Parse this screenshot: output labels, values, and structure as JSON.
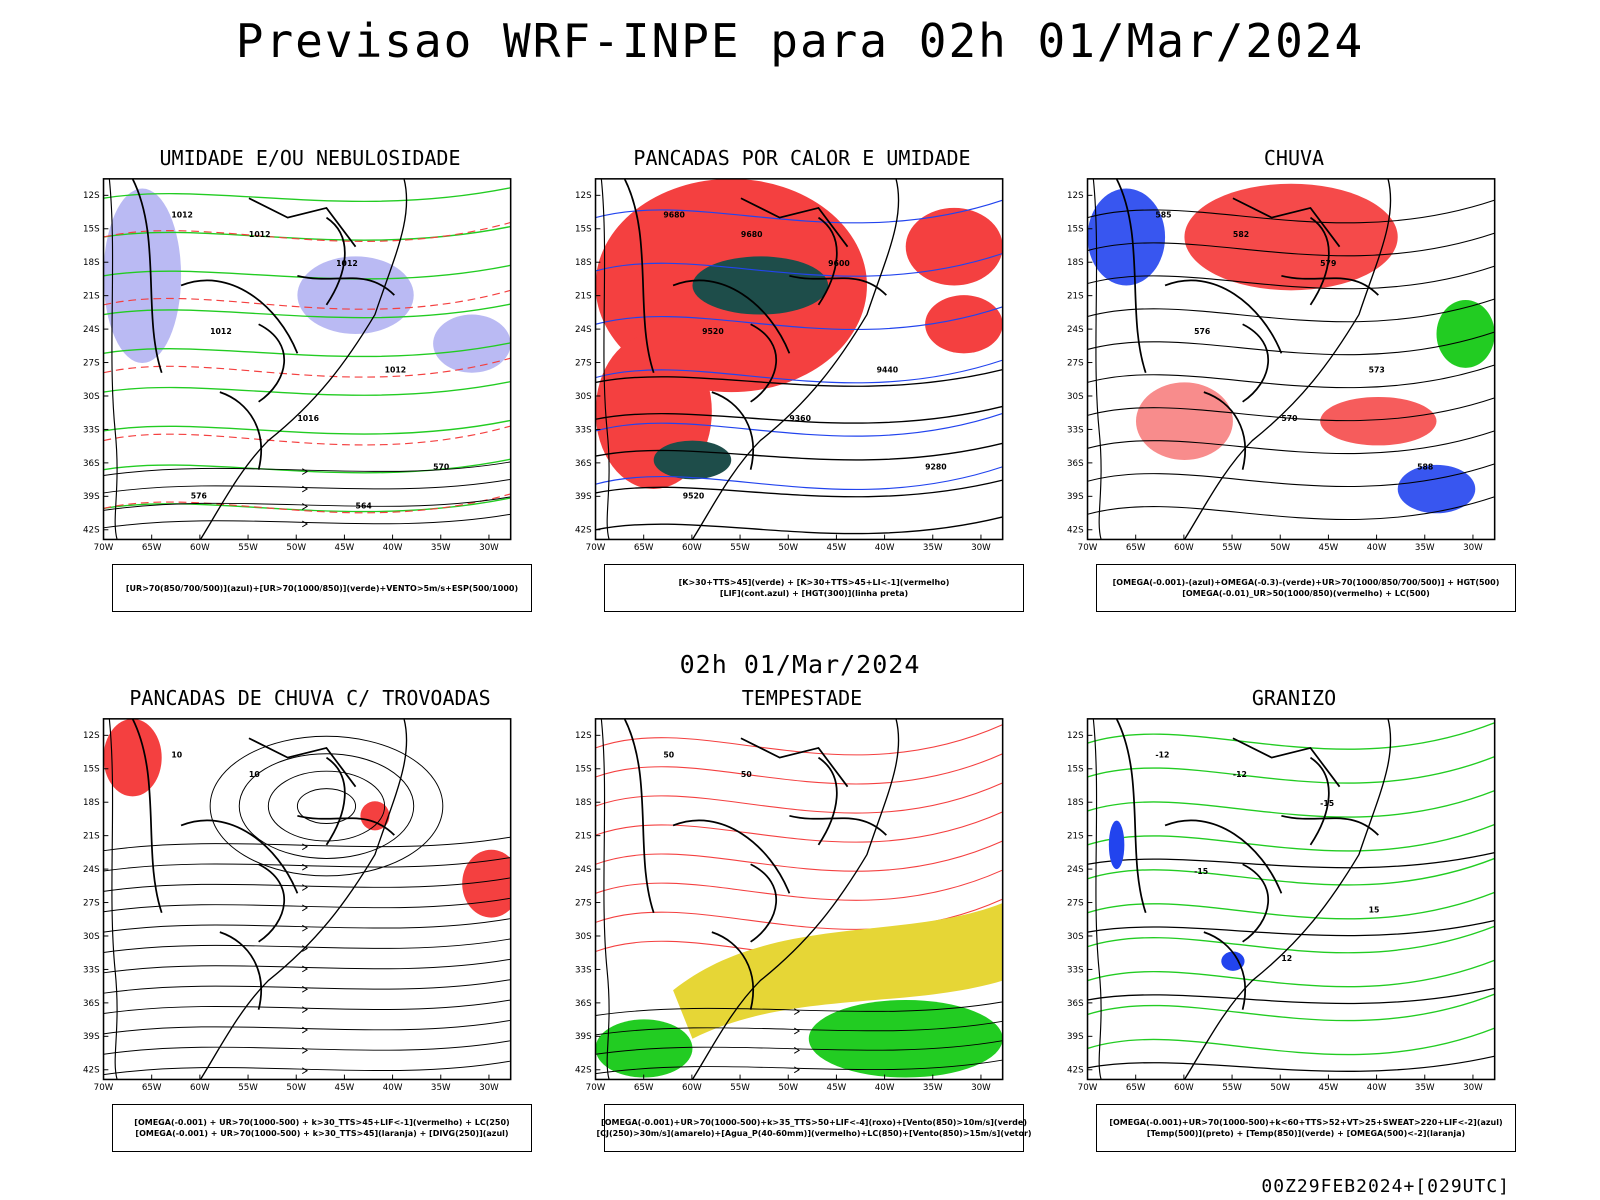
{
  "header": {
    "title": "Previsao WRF-INPE  para 02h 01/Mar/2024",
    "subtitle": "02h 01/Mar/2024",
    "footer": "00Z29FEB2024+[029UTC]"
  },
  "axes": {
    "lat_labels": [
      "12S",
      "15S",
      "18S",
      "21S",
      "24S",
      "27S",
      "30S",
      "33S",
      "36S",
      "39S",
      "42S"
    ],
    "lon_labels": [
      "70W",
      "65W",
      "60W",
      "55W",
      "50W",
      "45W",
      "40W",
      "35W",
      "30W"
    ]
  },
  "colors": {
    "blue_fill": "#b3b3f2",
    "green": "#22cc22",
    "red": "#f44040",
    "dark_teal": "#1e4d4a",
    "yellow": "#e6d636",
    "blue": "#2244ee",
    "orange": "#ee8822"
  },
  "panels": [
    {
      "title": "UMIDADE E/OU NEBULOSIDADE",
      "legend": [
        "[UR>70(850/700/500)](azul)+[UR>70(1000/850)](verde)+VENTO>5m/s+ESP(500/1000)"
      ],
      "labels": [
        "1012",
        "1012",
        "1012",
        "1012",
        "1012",
        "1016",
        "570",
        "576",
        "564"
      ]
    },
    {
      "title": "PANCADAS POR CALOR E UMIDADE",
      "legend": [
        "[K>30+TTS>45](verde)  +  [K>30+TTS>45+LI<-1](vermelho)",
        "[LIF](cont.azul)  +  [HGT(300)](linha preta)"
      ],
      "labels": [
        "9680",
        "9680",
        "9600",
        "9520",
        "9440",
        "9360",
        "9280",
        "9520"
      ]
    },
    {
      "title": "CHUVA",
      "legend": [
        "[OMEGA(-0.001)-(azul)+OMEGA(-0.3)-(verde)+UR>70(1000/850/700/500)]  +  HGT(500)",
        "[OMEGA(-0.01)_UR>50(1000/850)(vermelho)  +  LC(500)"
      ],
      "labels": [
        "585",
        "582",
        "579",
        "576",
        "573",
        "570",
        "588"
      ]
    },
    {
      "title": "PANCADAS DE CHUVA C/ TROVOADAS",
      "legend": [
        "[OMEGA(-0.001)  +  UR>70(1000-500)  +  k>30_TTS>45+LIF<-1](vermelho)  +  LC(250)",
        "[OMEGA(-0.001)  +  UR>70(1000-500)  +  k>30_TTS>45](laranja)  +  [DIVG(250)](azul)"
      ],
      "labels": [
        "10",
        "10"
      ]
    },
    {
      "title": "TEMPESTADE",
      "legend": [
        "[OMEGA(-0.001)+UR>70(1000-500)+k>35_TTS>50+LIF<-4](roxo)+[Vento(850)>10m/s](verde)",
        "[CJ(250)>30m/s](amarelo)+[Agua_P(40-60mm)](vermelho)+LC(850)+[Vento(850)>15m/s](vetor)"
      ],
      "labels": [
        "50",
        "50"
      ]
    },
    {
      "title": "GRANIZO",
      "legend": [
        "[OMEGA(-0.001)+UR>70(1000-500)+k<60+TTS>52+VT>25+SWEAT>220+LIF<-2](azul)",
        "[Temp(500)](preto)  +  [Temp(850)](verde)  +  [OMEGA(500)<-2](laranja)"
      ],
      "labels": [
        "-12",
        "-12",
        "-15",
        "-15",
        "15",
        "12"
      ]
    }
  ]
}
